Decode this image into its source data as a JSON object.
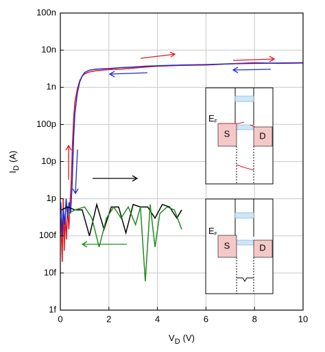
{
  "chart_data": {
    "type": "line",
    "xlabel": {
      "main": "V",
      "sub": "D",
      "unit": "(V)"
    },
    "ylabel": {
      "main": "I",
      "sub": "D",
      "unit": "(A)"
    },
    "xlim": [
      0,
      10
    ],
    "xticks": [
      0,
      2,
      4,
      6,
      8,
      10
    ],
    "ylim": [
      1e-15,
      1e-07
    ],
    "yscale": "log",
    "yticks": [
      {
        "value": 1e-15,
        "label": "1f"
      },
      {
        "value": 1e-14,
        "label": "10f"
      },
      {
        "value": 1e-13,
        "label": "100f"
      },
      {
        "value": 1e-12,
        "label": "1p"
      },
      {
        "value": 1e-11,
        "label": "10p"
      },
      {
        "value": 1e-10,
        "label": "100p"
      },
      {
        "value": 1e-09,
        "label": "1n"
      },
      {
        "value": 1e-08,
        "label": "10n"
      },
      {
        "value": 1e-07,
        "label": "100n"
      }
    ],
    "grid": true,
    "series": [
      {
        "color": "#e8141c",
        "x": [
          0.02,
          0.08,
          0.12,
          0.16,
          0.2,
          0.25,
          0.3,
          0.35,
          0.4,
          0.45,
          0.5,
          0.55,
          0.6,
          0.7,
          0.8,
          0.9,
          1.0,
          1.2,
          1.5,
          2,
          2.5,
          3,
          3.5,
          4,
          5,
          6,
          7,
          8,
          9,
          10
        ],
        "values": [
          3e-13,
          2e-14,
          1e-12,
          4e-14,
          4e-13,
          8e-14,
          6e-13,
          1.5e-13,
          8e-13,
          3e-12,
          3e-11,
          1.5e-10,
          4e-10,
          9e-10,
          1.5e-09,
          2e-09,
          2.3e-09,
          2.6e-09,
          2.8e-09,
          3e-09,
          3.1e-09,
          3.3e-09,
          3.5e-09,
          3.7e-09,
          3.9e-09,
          4e-09,
          4.3e-09,
          4.6e-09,
          4.4e-09,
          4.5e-09
        ]
      },
      {
        "color": "#1c2ad0",
        "x": [
          0.02,
          0.08,
          0.12,
          0.18,
          0.24,
          0.3,
          0.36,
          0.42,
          0.48,
          0.55,
          0.6,
          0.7,
          0.8,
          0.9,
          1.0,
          1.2,
          1.5,
          2,
          2.5,
          3,
          3.5,
          4,
          5,
          6,
          7,
          8,
          9,
          10
        ],
        "values": [
          8e-13,
          1e-13,
          5e-13,
          2e-13,
          1e-12,
          3e-13,
          8e-13,
          4e-13,
          2e-12,
          5e-11,
          2e-10,
          7e-10,
          1.4e-09,
          2e-09,
          2.5e-09,
          2.9e-09,
          3.1e-09,
          3.2e-09,
          3.4e-09,
          3.5e-09,
          3.7e-09,
          3.8e-09,
          4e-09,
          4.1e-09,
          4.3e-09,
          4.4e-09,
          4.5e-09,
          4.6e-09
        ]
      },
      {
        "color": "#000000",
        "x": [
          0.05,
          0.3,
          0.6,
          0.9,
          1.2,
          1.5,
          1.8,
          2.1,
          2.4,
          2.7,
          3.0,
          3.3,
          3.6,
          3.9,
          4.2,
          4.5,
          4.8,
          5.0
        ],
        "values": [
          5e-13,
          6e-13,
          5e-13,
          5e-13,
          1e-13,
          7e-13,
          1.5e-13,
          6e-13,
          6e-13,
          1.2e-13,
          7e-13,
          6e-13,
          6e-13,
          3e-13,
          7e-13,
          6e-13,
          3e-13,
          5e-13
        ]
      },
      {
        "color": "#1f8a1f",
        "x": [
          0.3,
          0.6,
          1.0,
          1.3,
          1.6,
          1.9,
          2.2,
          2.5,
          2.8,
          3.1,
          3.3,
          3.5,
          3.7,
          3.9,
          4.1,
          4.4,
          4.7,
          5.0
        ],
        "values": [
          4e-13,
          5e-13,
          6e-13,
          3e-13,
          5e-14,
          3e-13,
          6e-13,
          3e-13,
          6e-13,
          2e-13,
          6e-13,
          6e-15,
          7e-13,
          5e-14,
          4e-13,
          6e-13,
          5e-13,
          1.5e-13
        ]
      }
    ]
  },
  "insets": [
    {
      "fermi": "E",
      "fermi_sub": "F",
      "source": "S",
      "drain": "D"
    },
    {
      "fermi": "E",
      "fermi_sub": "F",
      "source": "S",
      "drain": "D"
    }
  ]
}
